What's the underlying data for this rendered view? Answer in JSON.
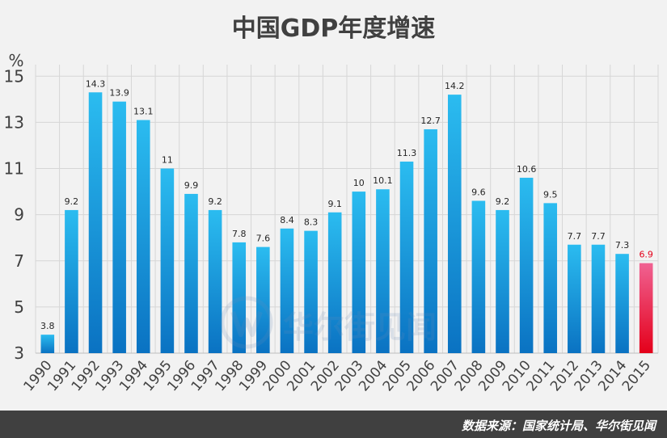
{
  "title": "中国GDP年度增速",
  "source": "数据来源：国家统计局、华尔街见闻",
  "watermark_text": "华尔街见闻",
  "colors": {
    "bar_top": "#2bbcf0",
    "bar_bottom": "#0a72c2",
    "highlight_top": "#f06292",
    "highlight_bottom": "#e4001a",
    "highlight_label": "#e4001a",
    "grid": "#d6d6d6",
    "axis_text": "#404040"
  },
  "chart_data": {
    "type": "bar",
    "categories": [
      "1990",
      "1991",
      "1992",
      "1993",
      "1994",
      "1995",
      "1996",
      "1997",
      "1998",
      "1999",
      "2000",
      "2001",
      "2002",
      "2003",
      "2004",
      "2005",
      "2006",
      "2007",
      "2008",
      "2009",
      "2010",
      "2011",
      "2012",
      "2013",
      "2014",
      "2015"
    ],
    "values": [
      3.8,
      9.2,
      14.3,
      13.9,
      13.1,
      11,
      9.9,
      9.2,
      7.8,
      7.6,
      8.4,
      8.3,
      9.1,
      10,
      10.1,
      11.3,
      12.7,
      14.2,
      9.6,
      9.2,
      10.6,
      9.5,
      7.7,
      7.7,
      7.3,
      6.9
    ],
    "value_labels": [
      "3.8",
      "9.2",
      "14.3",
      "13.9",
      "13.1",
      "11",
      "9.9",
      "9.2",
      "7.8",
      "7.6",
      "8.4",
      "8.3",
      "9.1",
      "10",
      "10.1",
      "11.3",
      "12.7",
      "14.2",
      "9.6",
      "9.2",
      "10.6",
      "9.5",
      "7.7",
      "7.7",
      "7.3",
      "6.9"
    ],
    "highlight_category": "2015",
    "ylabel": "%",
    "ylim": [
      3,
      15.5
    ],
    "yticks": [
      3,
      5,
      7,
      9,
      11,
      13,
      15
    ],
    "grid": true,
    "legend": "none"
  }
}
